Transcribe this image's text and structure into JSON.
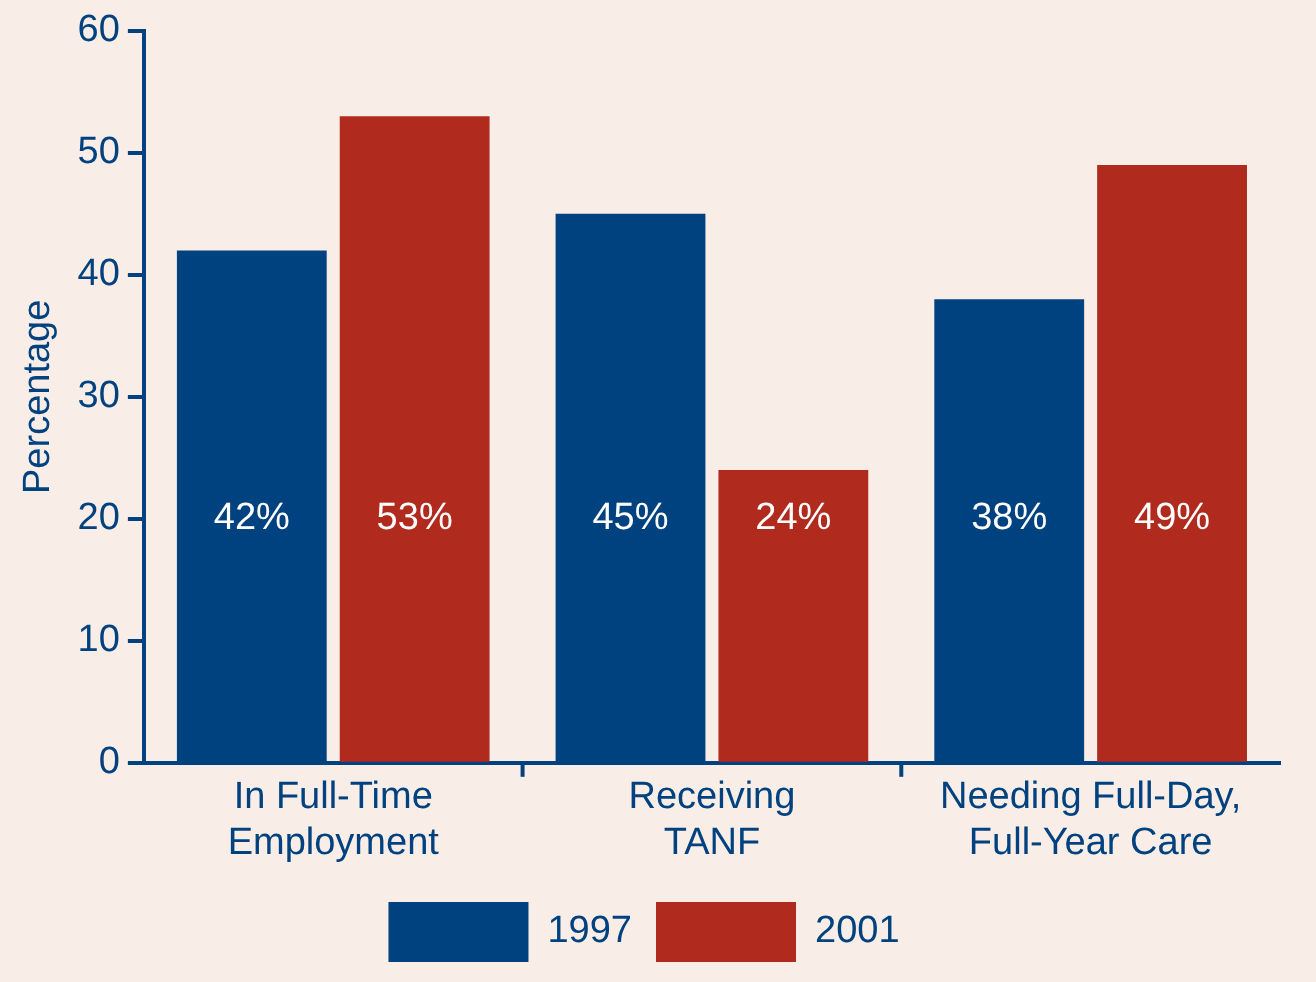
{
  "chart_data": {
    "type": "bar",
    "ylabel": "Percentage",
    "categories": [
      "In Full-Time\nEmployment",
      "Receiving\nTANF",
      "Needing Full-Day,\nFull-Year Care"
    ],
    "series": [
      {
        "name": "1997",
        "color": "#00427f",
        "values": [
          42,
          45,
          38
        ],
        "value_labels": [
          "42%",
          "45%",
          "38%"
        ]
      },
      {
        "name": "2001",
        "color": "#b02a1e",
        "values": [
          53,
          24,
          49
        ],
        "value_labels": [
          "53%",
          "24%",
          "49%"
        ]
      }
    ],
    "ylim": [
      0,
      60
    ],
    "yticks": [
      0,
      10,
      20,
      30,
      40,
      50,
      60
    ],
    "grid": false,
    "legend": "bottom"
  }
}
